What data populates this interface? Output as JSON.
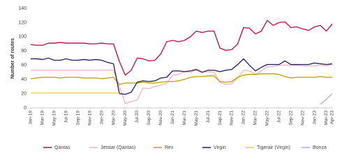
{
  "chart_data": {
    "type": "line",
    "y_label": "Number of routes",
    "categories": [
      "Jan-19",
      null,
      "Mar-19",
      null,
      "May-19",
      null,
      "Jul-19",
      null,
      "Sep-19",
      null,
      "Nov-19",
      null,
      "Jan-20",
      null,
      "Mar-20",
      null,
      "May-20",
      null,
      "Jul-20",
      null,
      "Sep-20",
      null,
      "Nov-20",
      null,
      "Jan-21",
      null,
      "Mar-21",
      null,
      "May-21",
      null,
      "Jul-21",
      null,
      "Sep-21",
      null,
      "Nov-21",
      null,
      "Jan-22",
      null,
      "Mar-22",
      null,
      "May-22",
      null,
      "Jul-22",
      null,
      "Sep-22",
      null,
      "Nov-22",
      null,
      "Jan-23",
      null,
      "Mar-23",
      "Apr-23"
    ],
    "series": [
      {
        "name": "Qantas",
        "color": "#c8174b",
        "values": [
          89,
          88,
          88,
          91,
          91,
          92,
          91,
          91,
          91,
          91,
          90,
          90,
          91,
          90,
          90,
          65,
          46,
          53,
          70,
          69,
          66,
          67,
          76,
          93,
          95,
          93,
          95,
          100,
          108,
          106,
          108,
          108,
          84,
          81,
          82,
          90,
          113,
          112,
          104,
          108,
          123,
          116,
          120,
          121,
          113,
          114,
          111,
          109,
          114,
          116,
          108,
          118
        ]
      },
      {
        "name": "Jetstar (Qantas)",
        "color": "#f4b8c4",
        "values": [
          53,
          53,
          53,
          53,
          53,
          53,
          53,
          53,
          53,
          53,
          53,
          53,
          53,
          53,
          53,
          30,
          6,
          9,
          11,
          28,
          27,
          30,
          32,
          35,
          46,
          47,
          51,
          50,
          53,
          50,
          51,
          50,
          36,
          33,
          34,
          42,
          53,
          52,
          47,
          52,
          58,
          58,
          60,
          60,
          60,
          60,
          59,
          59,
          59,
          60,
          59,
          61
        ]
      },
      {
        "name": "Rex",
        "color": "#c9a30a",
        "values": [
          41,
          42,
          43,
          43,
          43,
          42,
          43,
          43,
          43,
          42,
          42,
          42,
          41,
          42,
          43,
          33,
          35,
          35,
          35,
          36,
          35,
          35,
          36,
          37,
          37,
          38,
          40,
          43,
          44,
          44,
          45,
          45,
          37,
          36,
          37,
          43,
          46,
          47,
          47,
          48,
          48,
          48,
          47,
          44,
          42,
          43,
          43,
          43,
          43,
          44,
          43,
          43
        ]
      },
      {
        "name": "Virgin",
        "color": "#2e2a6b",
        "values": [
          69,
          69,
          68,
          70,
          67,
          67,
          69,
          67,
          67,
          68,
          67,
          68,
          67,
          64,
          62,
          20,
          19,
          22,
          36,
          38,
          37,
          38,
          42,
          43,
          52,
          52,
          51,
          52,
          54,
          50,
          53,
          53,
          51,
          53,
          54,
          61,
          69,
          60,
          52,
          57,
          61,
          61,
          61,
          66,
          61,
          61,
          61,
          61,
          63,
          62,
          61,
          62
        ]
      },
      {
        "name": "Tigerair (Virgin)",
        "color": "#f2d33c",
        "values": [
          21,
          21,
          21,
          21,
          21,
          21,
          21,
          21,
          21,
          21,
          21,
          21,
          21,
          21,
          21,
          20,
          null,
          null,
          null,
          null,
          null,
          null,
          null,
          null,
          null,
          null,
          null,
          null,
          null,
          null,
          null,
          null,
          null,
          null,
          null,
          null,
          null,
          null,
          null,
          null,
          null,
          null,
          null,
          null,
          null,
          null,
          null,
          null,
          null,
          null,
          null,
          null
        ]
      },
      {
        "name": "Bonza",
        "color": "#b8b3dc",
        "values": [
          null,
          null,
          null,
          null,
          null,
          null,
          null,
          null,
          null,
          null,
          null,
          null,
          null,
          null,
          null,
          null,
          null,
          null,
          null,
          null,
          null,
          null,
          null,
          null,
          null,
          null,
          null,
          null,
          null,
          null,
          null,
          null,
          null,
          null,
          null,
          null,
          null,
          null,
          null,
          null,
          null,
          null,
          null,
          null,
          null,
          null,
          null,
          null,
          null,
          5,
          12,
          20
        ]
      }
    ],
    "ylim": [
      0,
      140
    ],
    "yticks": [
      0,
      20,
      40,
      60,
      80,
      100,
      120,
      140
    ],
    "grid": false,
    "legend": "bottom"
  }
}
